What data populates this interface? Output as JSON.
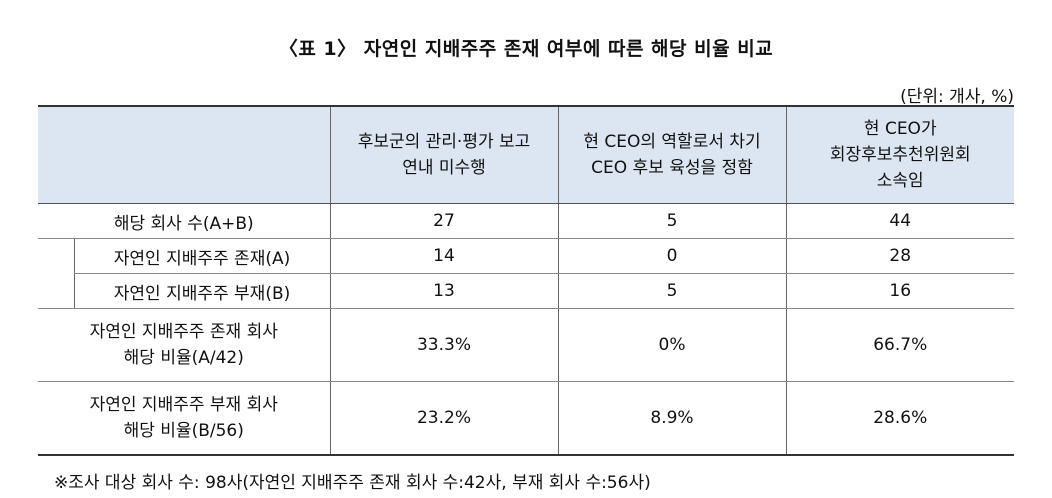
{
  "title": "〈표 1〉 자연인 지배주주 존재 여부에 따른 해당 비율 비교",
  "unit": "(단위: 개사, %)",
  "table": {
    "headers": [
      "",
      "후보군의 관리·평가 보고\n연내 미수행",
      "현 CEO의 역할로서 차기\nCEO 후보 육성을 정함",
      "현 CEO가\n회장후보추천위원회\n소속임"
    ],
    "rows": [
      {
        "label": "해당 회사 수(A+B)",
        "values": [
          "27",
          "5",
          "44"
        ]
      },
      {
        "label": "자연인 지배주주 존재(A)",
        "values": [
          "14",
          "0",
          "28"
        ]
      },
      {
        "label": "자연인 지배주주 부재(B)",
        "values": [
          "13",
          "5",
          "16"
        ]
      },
      {
        "label": "자연인 지배주주 존재 회사\n해당 비율(A/42)",
        "values": [
          "33.3%",
          "0%",
          "66.7%"
        ]
      },
      {
        "label": "자연인 지배주주 부재 회사\n해당 비율(B/56)",
        "values": [
          "23.2%",
          "8.9%",
          "28.6%"
        ]
      }
    ]
  },
  "note": "※조사 대상 회사 수: 98사(자연인 지배주주 존재 회사 수:42사, 부재 회사 수:56사)"
}
